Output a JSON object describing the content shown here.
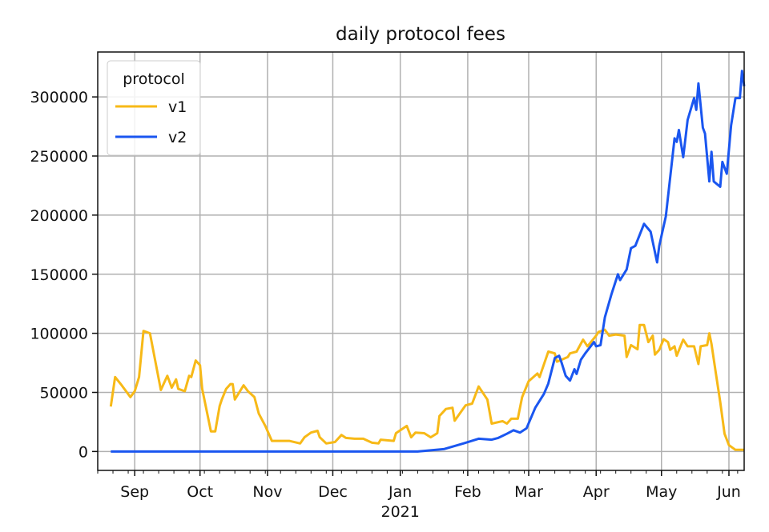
{
  "chart_data": {
    "type": "line",
    "title": "daily protocol fees",
    "xlabel": "",
    "ylabel": "",
    "xlim": [
      "2020-08-15",
      "2021-06-08"
    ],
    "ylim": [
      -16000,
      338000
    ],
    "grid": true,
    "legend": {
      "title": "protocol",
      "placement": "top-left"
    },
    "x_ticks": [
      {
        "date": "2020-09-01",
        "label": "Sep"
      },
      {
        "date": "2020-10-01",
        "label": "Oct"
      },
      {
        "date": "2020-11-01",
        "label": "Nov"
      },
      {
        "date": "2020-12-01",
        "label": "Dec"
      },
      {
        "date": "2021-01-01",
        "label": "Jan",
        "sublabel": "2021"
      },
      {
        "date": "2021-02-01",
        "label": "Feb"
      },
      {
        "date": "2021-03-01",
        "label": "Mar"
      },
      {
        "date": "2021-04-01",
        "label": "Apr"
      },
      {
        "date": "2021-05-01",
        "label": "May"
      },
      {
        "date": "2021-06-01",
        "label": "Jun"
      }
    ],
    "y_ticks": [
      0,
      50000,
      100000,
      150000,
      200000,
      250000,
      300000
    ],
    "y_tick_labels": [
      "0",
      "50000",
      "100000",
      "150000",
      "200000",
      "250000",
      "300000"
    ],
    "series": [
      {
        "name": "v1",
        "color": "#f7b917",
        "points": [
          [
            "2020-08-21",
            38000
          ],
          [
            "2020-08-23",
            63000
          ],
          [
            "2020-08-26",
            56000
          ],
          [
            "2020-08-30",
            46000
          ],
          [
            "2020-09-01",
            51000
          ],
          [
            "2020-09-03",
            63000
          ],
          [
            "2020-09-05",
            102000
          ],
          [
            "2020-09-08",
            100000
          ],
          [
            "2020-09-13",
            52000
          ],
          [
            "2020-09-16",
            64000
          ],
          [
            "2020-09-18",
            54000
          ],
          [
            "2020-09-20",
            61000
          ],
          [
            "2020-09-21",
            53000
          ],
          [
            "2020-09-24",
            51000
          ],
          [
            "2020-09-26",
            64000
          ],
          [
            "2020-09-27",
            63000
          ],
          [
            "2020-09-29",
            77000
          ],
          [
            "2020-10-01",
            73000
          ],
          [
            "2020-10-02",
            53000
          ],
          [
            "2020-10-06",
            17000
          ],
          [
            "2020-10-08",
            17000
          ],
          [
            "2020-10-10",
            38500
          ],
          [
            "2020-10-11",
            44000
          ],
          [
            "2020-10-13",
            53000
          ],
          [
            "2020-10-15",
            57000
          ],
          [
            "2020-10-16",
            57000
          ],
          [
            "2020-10-17",
            44000
          ],
          [
            "2020-10-21",
            56000
          ],
          [
            "2020-10-23",
            51000
          ],
          [
            "2020-10-26",
            46000
          ],
          [
            "2020-10-28",
            32000
          ],
          [
            "2020-10-31",
            21600
          ],
          [
            "2020-11-03",
            9000
          ],
          [
            "2020-11-07",
            9000
          ],
          [
            "2020-11-11",
            9000
          ],
          [
            "2020-11-16",
            6800
          ],
          [
            "2020-11-18",
            12000
          ],
          [
            "2020-11-21",
            16000
          ],
          [
            "2020-11-24",
            17500
          ],
          [
            "2020-11-25",
            12000
          ],
          [
            "2020-11-28",
            6800
          ],
          [
            "2020-12-02",
            8000
          ],
          [
            "2020-12-05",
            14000
          ],
          [
            "2020-12-07",
            11500
          ],
          [
            "2020-12-11",
            10800
          ],
          [
            "2020-12-15",
            10800
          ],
          [
            "2020-12-19",
            7400
          ],
          [
            "2020-12-22",
            6800
          ],
          [
            "2020-12-23",
            10000
          ],
          [
            "2020-12-29",
            9000
          ],
          [
            "2020-12-30",
            15500
          ],
          [
            "2021-01-04",
            21600
          ],
          [
            "2021-01-06",
            12000
          ],
          [
            "2021-01-08",
            16000
          ],
          [
            "2021-01-12",
            15500
          ],
          [
            "2021-01-15",
            12000
          ],
          [
            "2021-01-18",
            15500
          ],
          [
            "2021-01-19",
            30000
          ],
          [
            "2021-01-22",
            36000
          ],
          [
            "2021-01-25",
            37000
          ],
          [
            "2021-01-26",
            26000
          ],
          [
            "2021-01-31",
            39000
          ],
          [
            "2021-02-03",
            40500
          ],
          [
            "2021-02-06",
            55000
          ],
          [
            "2021-02-10",
            44000
          ],
          [
            "2021-02-12",
            23600
          ],
          [
            "2021-02-17",
            25700
          ],
          [
            "2021-02-19",
            23600
          ],
          [
            "2021-02-21",
            27700
          ],
          [
            "2021-02-24",
            27700
          ],
          [
            "2021-02-26",
            46000
          ],
          [
            "2021-03-01",
            59500
          ],
          [
            "2021-03-05",
            66000
          ],
          [
            "2021-03-06",
            63000
          ],
          [
            "2021-03-10",
            84500
          ],
          [
            "2021-03-13",
            83000
          ],
          [
            "2021-03-14",
            76000
          ],
          [
            "2021-03-19",
            80000
          ],
          [
            "2021-03-20",
            83000
          ],
          [
            "2021-03-23",
            84500
          ],
          [
            "2021-03-26",
            94600
          ],
          [
            "2021-03-28",
            89000
          ],
          [
            "2021-04-01",
            98000
          ],
          [
            "2021-04-02",
            101000
          ],
          [
            "2021-04-05",
            103000
          ],
          [
            "2021-04-07",
            98000
          ],
          [
            "2021-04-10",
            99000
          ],
          [
            "2021-04-14",
            98000
          ],
          [
            "2021-04-15",
            80000
          ],
          [
            "2021-04-17",
            90000
          ],
          [
            "2021-04-20",
            86500
          ],
          [
            "2021-04-21",
            107000
          ],
          [
            "2021-04-23",
            107000
          ],
          [
            "2021-04-25",
            92600
          ],
          [
            "2021-04-27",
            98000
          ],
          [
            "2021-04-28",
            82000
          ],
          [
            "2021-04-30",
            86000
          ],
          [
            "2021-05-02",
            95000
          ],
          [
            "2021-05-04",
            92600
          ],
          [
            "2021-05-05",
            86000
          ],
          [
            "2021-05-07",
            89000
          ],
          [
            "2021-05-08",
            81000
          ],
          [
            "2021-05-11",
            94600
          ],
          [
            "2021-05-13",
            89000
          ],
          [
            "2021-05-16",
            89000
          ],
          [
            "2021-05-18",
            74000
          ],
          [
            "2021-05-19",
            89000
          ],
          [
            "2021-05-22",
            90000
          ],
          [
            "2021-05-23",
            100000
          ],
          [
            "2021-05-24",
            91000
          ],
          [
            "2021-05-26",
            66000
          ],
          [
            "2021-05-28",
            42000
          ],
          [
            "2021-05-30",
            15000
          ],
          [
            "2021-06-01",
            5400
          ],
          [
            "2021-06-04",
            1400
          ],
          [
            "2021-06-08",
            1400
          ]
        ]
      },
      {
        "name": "v2",
        "color": "#1a56f0",
        "points": [
          [
            "2020-08-21",
            0
          ],
          [
            "2021-01-09",
            0
          ],
          [
            "2021-01-21",
            2000
          ],
          [
            "2021-01-30",
            6800
          ],
          [
            "2021-02-06",
            10800
          ],
          [
            "2021-02-12",
            10000
          ],
          [
            "2021-02-15",
            11500
          ],
          [
            "2021-02-19",
            15000
          ],
          [
            "2021-02-22",
            18000
          ],
          [
            "2021-02-25",
            16000
          ],
          [
            "2021-02-28",
            19600
          ],
          [
            "2021-03-04",
            37000
          ],
          [
            "2021-03-08",
            48700
          ],
          [
            "2021-03-10",
            57500
          ],
          [
            "2021-03-13",
            79000
          ],
          [
            "2021-03-15",
            81000
          ],
          [
            "2021-03-16",
            75700
          ],
          [
            "2021-03-18",
            64000
          ],
          [
            "2021-03-20",
            60000
          ],
          [
            "2021-03-22",
            69600
          ],
          [
            "2021-03-23",
            65600
          ],
          [
            "2021-03-25",
            77700
          ],
          [
            "2021-03-27",
            83000
          ],
          [
            "2021-03-31",
            92600
          ],
          [
            "2021-04-01",
            89000
          ],
          [
            "2021-04-03",
            90000
          ],
          [
            "2021-04-05",
            113500
          ],
          [
            "2021-04-08",
            133000
          ],
          [
            "2021-04-11",
            150000
          ],
          [
            "2021-04-12",
            145000
          ],
          [
            "2021-04-15",
            154000
          ],
          [
            "2021-04-17",
            172000
          ],
          [
            "2021-04-19",
            174000
          ],
          [
            "2021-04-23",
            192600
          ],
          [
            "2021-04-26",
            186000
          ],
          [
            "2021-04-29",
            160000
          ],
          [
            "2021-04-30",
            174000
          ],
          [
            "2021-05-03",
            199000
          ],
          [
            "2021-05-07",
            265000
          ],
          [
            "2021-05-08",
            262000
          ],
          [
            "2021-05-09",
            272000
          ],
          [
            "2021-05-11",
            249000
          ],
          [
            "2021-05-13",
            280500
          ],
          [
            "2021-05-16",
            299000
          ],
          [
            "2021-05-17",
            289000
          ],
          [
            "2021-05-18",
            311500
          ],
          [
            "2021-05-20",
            274000
          ],
          [
            "2021-05-21",
            269000
          ],
          [
            "2021-05-23",
            228500
          ],
          [
            "2021-05-24",
            253500
          ],
          [
            "2021-05-25",
            228500
          ],
          [
            "2021-05-28",
            224000
          ],
          [
            "2021-05-29",
            245000
          ],
          [
            "2021-05-31",
            235000
          ],
          [
            "2021-06-02",
            276000
          ],
          [
            "2021-06-04",
            299000
          ],
          [
            "2021-06-06",
            299000
          ],
          [
            "2021-06-07",
            322000
          ],
          [
            "2021-06-08",
            309000
          ]
        ]
      }
    ]
  }
}
